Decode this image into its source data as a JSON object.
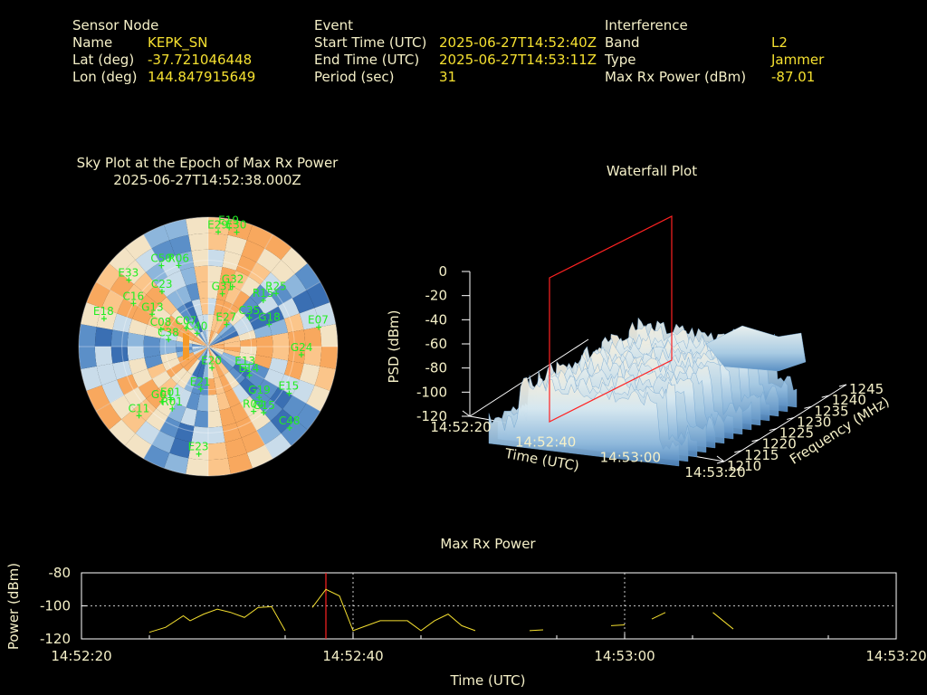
{
  "header": {
    "sensor": {
      "heading": "Sensor Node",
      "name_label": "Name",
      "name": "KEPK_SN",
      "lat_label": "Lat (deg)",
      "lat": "-37.721046448",
      "lon_label": "Lon (deg)",
      "lon": "144.847915649"
    },
    "event": {
      "heading": "Event",
      "start_label": "Start Time (UTC)",
      "start": "2025-06-27T14:52:40Z",
      "end_label": "End Time (UTC)",
      "end": "2025-06-27T14:53:11Z",
      "period_label": "Period (sec)",
      "period": "31"
    },
    "interference": {
      "heading": "Interference",
      "band_label": "Band",
      "band": "L2",
      "type_label": "Type",
      "type": "Jammer",
      "power_label": "Max Rx Power (dBm)",
      "power": "-87.01"
    }
  },
  "colors": {
    "text": "#f5f0c8",
    "value": "#f5e030",
    "satellite": "#22ee22",
    "marker": "#ff2222",
    "grid": "#ffffff"
  },
  "chart_data": [
    {
      "type": "scatter",
      "title": "Sky Plot at the Epoch of Max Rx Power",
      "subtitle": "2025-06-27T14:52:38.000Z",
      "satellites": [
        {
          "id": "E29",
          "az": 5,
          "el": 10
        },
        {
          "id": "E19",
          "az": 10,
          "el": 6
        },
        {
          "id": "E30",
          "az": 14,
          "el": 8
        },
        {
          "id": "G32",
          "az": 22,
          "el": 45
        },
        {
          "id": "G31",
          "az": 15,
          "el": 52
        },
        {
          "id": "R25",
          "az": 52,
          "el": 30
        },
        {
          "id": "R15",
          "az": 50,
          "el": 40
        },
        {
          "id": "C35",
          "az": 55,
          "el": 55
        },
        {
          "id": "G18",
          "az": 70,
          "el": 45
        },
        {
          "id": "E07",
          "az": 80,
          "el": 12
        },
        {
          "id": "E27",
          "az": 40,
          "el": 70
        },
        {
          "id": "G24",
          "az": 95,
          "el": 25
        },
        {
          "id": "E15",
          "az": 120,
          "el": 25
        },
        {
          "id": "E13",
          "az": 120,
          "el": 60
        },
        {
          "id": "E14",
          "az": 125,
          "el": 55
        },
        {
          "id": "G19",
          "az": 135,
          "el": 40
        },
        {
          "id": "R04",
          "az": 145,
          "el": 35
        },
        {
          "id": "G15",
          "az": 140,
          "el": 30
        },
        {
          "id": "C48",
          "az": 135,
          "el": 10
        },
        {
          "id": "E23",
          "az": 185,
          "el": 15
        },
        {
          "id": "E20",
          "az": 170,
          "el": 75
        },
        {
          "id": "E21",
          "az": 190,
          "el": 60
        },
        {
          "id": "E01",
          "az": 215,
          "el": 45
        },
        {
          "id": "R01",
          "az": 210,
          "el": 40
        },
        {
          "id": "G01",
          "az": 220,
          "el": 40
        },
        {
          "id": "C11",
          "az": 225,
          "el": 22
        },
        {
          "id": "C40",
          "az": 320,
          "el": 78
        },
        {
          "id": "C07",
          "az": 310,
          "el": 70
        },
        {
          "id": "C08",
          "az": 290,
          "el": 55
        },
        {
          "id": "C38",
          "az": 280,
          "el": 62
        },
        {
          "id": "G13",
          "az": 300,
          "el": 45
        },
        {
          "id": "E18",
          "az": 285,
          "el": 15
        },
        {
          "id": "E33",
          "az": 310,
          "el": 18
        },
        {
          "id": "C50",
          "az": 330,
          "el": 25
        },
        {
          "id": "R06",
          "az": 340,
          "el": 30
        },
        {
          "id": "C23",
          "az": 320,
          "el": 40
        },
        {
          "id": "C16",
          "az": 300,
          "el": 30
        }
      ]
    },
    {
      "type": "area",
      "title": "Waterfall Plot",
      "xlabel": "Time (UTC)",
      "ylabel": "Frequency (MHz)",
      "zlabel": "PSD (dBm)",
      "x_ticks": [
        "14:52:20",
        "14:52:40",
        "14:53:00",
        "14:53:20"
      ],
      "y_ticks": [
        "1210",
        "1215",
        "1220",
        "1225",
        "1230",
        "1235",
        "1240",
        "1245"
      ],
      "z_ticks": [
        "0",
        "-20",
        "-40",
        "-60",
        "-80",
        "-100",
        "-120"
      ],
      "zlim": [
        -120,
        0
      ],
      "marker_time": "14:52:38"
    },
    {
      "type": "line",
      "title": "Max Rx Power",
      "xlabel": "Time (UTC)",
      "ylabel": "Power (dBm)",
      "x_ticks": [
        "14:52:20",
        "14:52:40",
        "14:53:00",
        "14:53:20"
      ],
      "y_ticks": [
        "-80",
        "-100",
        "-120"
      ],
      "ylim": [
        -120,
        -80
      ],
      "marker_time": "14:52:38",
      "segments": [
        [
          [
            25,
            -116
          ],
          [
            26.2,
            -113
          ],
          [
            27.5,
            -106
          ],
          [
            28,
            -109
          ],
          [
            29,
            -105
          ],
          [
            30,
            -102
          ],
          [
            31,
            -104
          ],
          [
            32,
            -107
          ],
          [
            33,
            -101
          ],
          [
            34,
            -100.5
          ],
          [
            35,
            -115
          ]
        ],
        [
          [
            37,
            -101
          ],
          [
            38,
            -90
          ],
          [
            39,
            -94
          ],
          [
            40,
            -115
          ],
          [
            41,
            -112
          ],
          [
            42,
            -109
          ],
          [
            43,
            -109
          ],
          [
            44,
            -109
          ],
          [
            45,
            -115
          ],
          [
            46,
            -109
          ],
          [
            47,
            -105
          ],
          [
            48,
            -112
          ],
          [
            49,
            -115
          ]
        ],
        [
          [
            53,
            -115
          ],
          [
            54,
            -114.5
          ]
        ],
        [
          [
            59,
            -112
          ],
          [
            60,
            -111.5
          ]
        ],
        [
          [
            62,
            -108
          ],
          [
            63,
            -104
          ]
        ],
        [
          [
            66.5,
            -104
          ],
          [
            68,
            -114
          ]
        ]
      ]
    }
  ]
}
